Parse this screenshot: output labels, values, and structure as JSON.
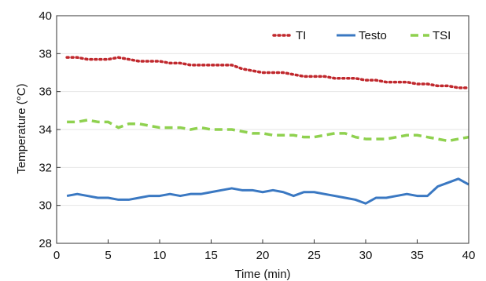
{
  "chart_data": {
    "type": "line",
    "title": "",
    "xlabel": "Time (min)",
    "ylabel": "Temperature (°C)",
    "xlim": [
      0,
      40
    ],
    "ylim": [
      28,
      40
    ],
    "x_ticks": [
      0,
      5,
      10,
      15,
      20,
      25,
      30,
      35,
      40
    ],
    "y_ticks": [
      28,
      30,
      32,
      34,
      36,
      38,
      40
    ],
    "grid": "horizontal",
    "legend_position": "top-right",
    "x": [
      1,
      2,
      3,
      4,
      5,
      6,
      7,
      8,
      9,
      10,
      11,
      12,
      13,
      14,
      15,
      16,
      17,
      18,
      19,
      20,
      21,
      22,
      23,
      24,
      25,
      26,
      27,
      28,
      29,
      30,
      31,
      32,
      33,
      34,
      35,
      36,
      37,
      38,
      39,
      40
    ],
    "series": [
      {
        "name": "TI",
        "color": "#c0282d",
        "style": "dotted",
        "values": [
          37.8,
          37.8,
          37.7,
          37.7,
          37.7,
          37.8,
          37.7,
          37.6,
          37.6,
          37.6,
          37.5,
          37.5,
          37.4,
          37.4,
          37.4,
          37.4,
          37.4,
          37.2,
          37.1,
          37.0,
          37.0,
          37.0,
          36.9,
          36.8,
          36.8,
          36.8,
          36.7,
          36.7,
          36.7,
          36.6,
          36.6,
          36.5,
          36.5,
          36.5,
          36.4,
          36.4,
          36.3,
          36.3,
          36.2,
          36.2
        ]
      },
      {
        "name": "Testo",
        "color": "#3a78c2",
        "style": "solid",
        "values": [
          30.5,
          30.6,
          30.5,
          30.4,
          30.4,
          30.3,
          30.3,
          30.4,
          30.5,
          30.5,
          30.6,
          30.5,
          30.6,
          30.6,
          30.7,
          30.8,
          30.9,
          30.8,
          30.8,
          30.7,
          30.8,
          30.7,
          30.5,
          30.7,
          30.7,
          30.6,
          30.5,
          30.4,
          30.3,
          30.1,
          30.4,
          30.4,
          30.5,
          30.6,
          30.5,
          30.5,
          31.0,
          31.2,
          31.4,
          31.1
        ]
      },
      {
        "name": "TSI",
        "color": "#8fd14f",
        "style": "dashed",
        "values": [
          34.4,
          34.4,
          34.5,
          34.4,
          34.4,
          34.1,
          34.3,
          34.3,
          34.2,
          34.1,
          34.1,
          34.1,
          34.0,
          34.1,
          34.0,
          34.0,
          34.0,
          33.9,
          33.8,
          33.8,
          33.7,
          33.7,
          33.7,
          33.6,
          33.6,
          33.7,
          33.8,
          33.8,
          33.6,
          33.5,
          33.5,
          33.5,
          33.6,
          33.7,
          33.7,
          33.6,
          33.5,
          33.4,
          33.5,
          33.6
        ]
      }
    ]
  }
}
